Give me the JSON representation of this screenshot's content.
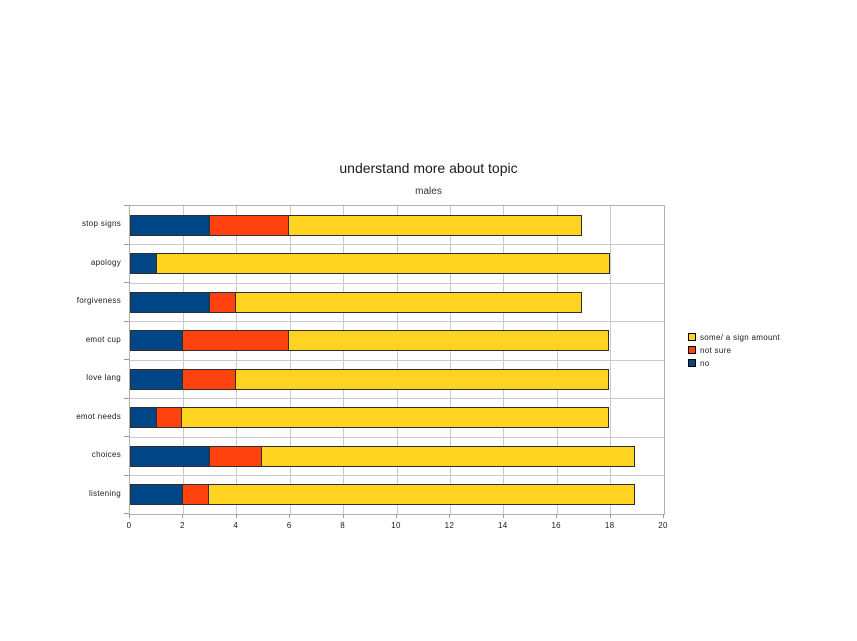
{
  "chart": {
    "title": "understand more about topic",
    "subtitle": "males"
  },
  "chart_data": {
    "type": "bar",
    "orientation": "horizontal",
    "stacked": true,
    "title": "understand more about topic",
    "subtitle": "males",
    "categories": [
      "stop signs",
      "apology",
      "forgiveness",
      "emot cup",
      "love lang",
      "emot needs",
      "choices",
      "listening"
    ],
    "series": [
      {
        "name": "no",
        "color": "#004586",
        "values": [
          3,
          1,
          3,
          2,
          2,
          1,
          3,
          2
        ]
      },
      {
        "name": "not sure",
        "color": "#ff420e",
        "values": [
          3,
          0,
          1,
          4,
          2,
          1,
          2,
          1
        ]
      },
      {
        "name": "some/ a sign amount",
        "color": "#ffd320",
        "values": [
          11,
          17,
          13,
          12,
          14,
          16,
          14,
          16
        ]
      }
    ],
    "totals": [
      17,
      18,
      17,
      18,
      18,
      18,
      19,
      19
    ],
    "xlabel": "",
    "ylabel": "",
    "xlim": [
      0,
      20
    ],
    "x_ticks": [
      0,
      2,
      4,
      6,
      8,
      10,
      12,
      14,
      16,
      18,
      20
    ],
    "grid": true,
    "legend_position": "right",
    "legend": [
      {
        "label": "some/ a sign amount",
        "color": "#ffd320"
      },
      {
        "label": "not sure",
        "color": "#ff420e"
      },
      {
        "label": "no",
        "color": "#004586"
      }
    ]
  },
  "colors": {
    "bar_no": "#004586",
    "bar_not_sure": "#ff420e",
    "bar_some": "#ffd320",
    "gridline": "#c9c9c9",
    "plot_border": "#b0b0b0",
    "background": "#ffffff"
  }
}
